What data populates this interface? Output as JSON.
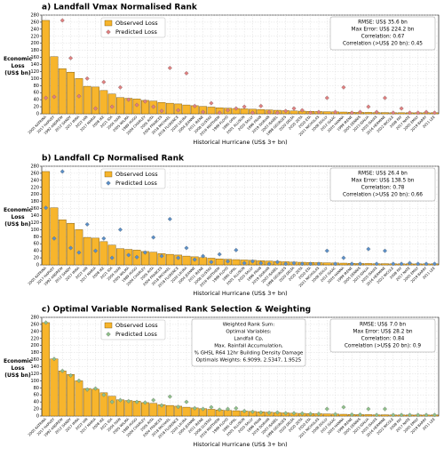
{
  "chart_data": [
    {
      "type": "bar",
      "title": "a) Landfall Vmax Normalised Rank",
      "y_label": [
        "Economic",
        "Loss",
        "(US$ bn)"
      ],
      "x_label": "Historical Hurricane (US$ 3+ bn)",
      "categories": [
        "2005 KATRINA",
        "2017 HARVEY",
        "1992 ANDREW",
        "2012 SANDY",
        "2017 IRMA",
        "2022 IAN",
        "2017 MARIA",
        "2008 IKE",
        "2021 IDA",
        "2004 IVAN",
        "2005 WILMA",
        "1989 HUGO",
        "2004 CHARLEY",
        "2005 RITA",
        "2004 FRANCES",
        "2018 MICHAEL",
        "2018 FLORENCE",
        "2020 LAURA",
        "2004 JEANNE",
        "2011 IRENE",
        "2008 GUSTAV",
        "2016 MATTHEW",
        "1999 FLOYD",
        "1995 OPAL",
        "2001 ALLISON",
        "2020 SALLY",
        "1996 FRAN",
        "2019 DORIAN",
        "2003 ISABEL",
        "1998 GEORGES",
        "2020 DELTA",
        "2020 ZETA",
        "2020 ETA",
        "2021 NICHOLAS",
        "2008 DOLLY",
        "2012 ISAAC",
        "2020 HANNA",
        "1999 IRENE",
        "2005 DENNIS",
        "2023 IDALIA",
        "2020 ISAIAS",
        "2016 HERMINE",
        "2022 NICOLE",
        "2008 FAY",
        "2017 NATE",
        "2005 EMILY",
        "2019 BARRY",
        "2011 LEE"
      ],
      "series": [
        {
          "name": "Observed Loss",
          "color": "#f7b52c",
          "style": "bar",
          "values": [
            265,
            162,
            128,
            118,
            100,
            78,
            76,
            66,
            56,
            46,
            44,
            42,
            38,
            36,
            32,
            30,
            28,
            25,
            23,
            21,
            19,
            17,
            16,
            15,
            14,
            13,
            12,
            11,
            10,
            9,
            8,
            7.5,
            7,
            6.5,
            6,
            5.5,
            5,
            4.5,
            4,
            4,
            3.5,
            3.5,
            3,
            3,
            3,
            3,
            3,
            3
          ]
        },
        {
          "name": "Predicted Loss",
          "color": "#e07f7f",
          "style": "diamond",
          "values": [
            45,
            48,
            265,
            158,
            50,
            100,
            15,
            90,
            20,
            75,
            40,
            25,
            35,
            20,
            8,
            130,
            10,
            115,
            22,
            5,
            30,
            3,
            10,
            15,
            20,
            3,
            22,
            5,
            3,
            8,
            15,
            10,
            3,
            5,
            45,
            5,
            75,
            3,
            5,
            20,
            5,
            45,
            3,
            15,
            3,
            3,
            5,
            3
          ]
        }
      ],
      "ylim": [
        0,
        280
      ],
      "yticks": [
        0,
        20,
        40,
        60,
        80,
        100,
        120,
        140,
        160,
        180,
        200,
        220,
        240,
        260,
        280
      ],
      "grid": true,
      "legend": "upper left",
      "stats": [
        "RMSE: US$ 35.6 bn",
        "Max Error: US$ 224.2 bn",
        "Correlation: 0.67",
        "Correlation (>US$ 20 bn): 0.45"
      ]
    },
    {
      "type": "bar",
      "title": "b) Landfall Cp Normalised Rank",
      "y_label": [
        "Economic",
        "Loss",
        "(US$ bn)"
      ],
      "x_label": "Historical Hurricane (US$ 3+ bn)",
      "categories": [
        "2005 KATRINA",
        "2017 HARVEY",
        "1992 ANDREW",
        "2012 SANDY",
        "2017 IRMA",
        "2022 IAN",
        "2017 MARIA",
        "2008 IKE",
        "2021 IDA",
        "2004 IVAN",
        "2005 WILMA",
        "1989 HUGO",
        "2004 CHARLEY",
        "2005 RITA",
        "2004 FRANCES",
        "2018 MICHAEL",
        "2018 FLORENCE",
        "2020 LAURA",
        "2004 JEANNE",
        "2011 IRENE",
        "2008 GUSTAV",
        "2016 MATTHEW",
        "1999 FLOYD",
        "1995 OPAL",
        "2001 ALLISON",
        "2020 SALLY",
        "1996 FRAN",
        "2019 DORIAN",
        "2003 ISABEL",
        "1998 GEORGES",
        "2020 DELTA",
        "2020 ZETA",
        "2020 ETA",
        "2021 NICHOLAS",
        "2008 DOLLY",
        "2012 ISAAC",
        "2020 HANNA",
        "1999 IRENE",
        "2005 DENNIS",
        "2023 IDALIA",
        "2020 ISAIAS",
        "2016 HERMINE",
        "2022 NICOLE",
        "2008 FAY",
        "2017 NATE",
        "2005 EMILY",
        "2019 BARRY",
        "2011 LEE"
      ],
      "series": [
        {
          "name": "Observed Loss",
          "color": "#f7b52c",
          "style": "bar",
          "values": [
            265,
            162,
            128,
            118,
            100,
            78,
            76,
            66,
            56,
            46,
            44,
            42,
            38,
            36,
            32,
            30,
            28,
            25,
            23,
            21,
            19,
            17,
            16,
            15,
            14,
            13,
            12,
            11,
            10,
            9,
            8,
            7.5,
            7,
            6.5,
            6,
            5.5,
            5,
            4.5,
            4,
            4,
            3.5,
            3.5,
            3,
            3,
            3,
            3,
            3,
            3
          ]
        },
        {
          "name": "Predicted Loss",
          "color": "#5b8fc7",
          "style": "diamond",
          "values": [
            162,
            75,
            265,
            48,
            35,
            115,
            40,
            75,
            20,
            100,
            28,
            22,
            35,
            78,
            25,
            130,
            20,
            48,
            15,
            25,
            8,
            30,
            10,
            42,
            5,
            10,
            5,
            3,
            8,
            3,
            5,
            3,
            3,
            3,
            40,
            3,
            20,
            3,
            3,
            45,
            3,
            40,
            3,
            3,
            5,
            3,
            3,
            3
          ]
        }
      ],
      "ylim": [
        0,
        280
      ],
      "yticks": [
        0,
        20,
        40,
        60,
        80,
        100,
        120,
        140,
        160,
        180,
        200,
        220,
        240,
        260,
        280
      ],
      "grid": true,
      "legend": "upper left",
      "stats": [
        "RMSE: US$ 26.4 bn",
        "Max Error: US$ 138.5 bn",
        "Correlation: 0.78",
        "Correlation (>US$ 20 bn): 0.66"
      ]
    },
    {
      "type": "bar",
      "title": "c) Optimal Variable Normalised Rank Selection & Weighting",
      "y_label": [
        "Economic",
        "Loss",
        "(US$ bn)"
      ],
      "x_label": "Historical Hurricane (US$ 3+ bn)",
      "categories": [
        "2005 KATRINA",
        "2017 HARVEY",
        "1992 ANDREW",
        "2012 SANDY",
        "2017 IRMA",
        "2022 IAN",
        "2017 MARIA",
        "2008 IKE",
        "2021 IDA",
        "2004 IVAN",
        "2005 WILMA",
        "1989 HUGO",
        "2004 CHARLEY",
        "2005 RITA",
        "2004 FRANCES",
        "2018 MICHAEL",
        "2018 FLORENCE",
        "2020 LAURA",
        "2004 JEANNE",
        "2011 IRENE",
        "2008 GUSTAV",
        "2016 MATTHEW",
        "1999 FLOYD",
        "1995 OPAL",
        "2001 ALLISON",
        "2020 SALLY",
        "1996 FRAN",
        "2019 DORIAN",
        "2003 ISABEL",
        "1998 GEORGES",
        "2020 DELTA",
        "2020 ZETA",
        "2020 ETA",
        "2021 NICHOLAS",
        "2008 DOLLY",
        "2012 ISAAC",
        "2020 HANNA",
        "1999 IRENE",
        "2005 DENNIS",
        "2023 IDALIA",
        "2020 ISAIAS",
        "2016 HERMINE",
        "2022 NICOLE",
        "2008 FAY",
        "2017 NATE",
        "2005 EMILY",
        "2019 BARRY",
        "2011 LEE"
      ],
      "series": [
        {
          "name": "Observed Loss",
          "color": "#f7b52c",
          "style": "bar",
          "values": [
            265,
            162,
            128,
            118,
            100,
            78,
            76,
            66,
            56,
            46,
            44,
            42,
            38,
            36,
            32,
            30,
            28,
            25,
            23,
            21,
            19,
            17,
            16,
            15,
            14,
            13,
            12,
            11,
            10,
            9,
            8,
            7.5,
            7,
            6.5,
            6,
            5.5,
            5,
            4.5,
            4,
            4,
            3.5,
            3.5,
            3,
            3,
            3,
            3,
            3,
            3
          ]
        },
        {
          "name": "Predicted Loss",
          "color": "#8fc08a",
          "style": "diamond",
          "values": [
            265,
            162,
            128,
            115,
            100,
            75,
            78,
            60,
            40,
            45,
            42,
            40,
            38,
            45,
            30,
            55,
            26,
            40,
            22,
            20,
            25,
            18,
            20,
            22,
            14,
            12,
            10,
            9,
            10,
            8,
            8,
            7,
            6,
            6,
            20,
            5,
            25,
            4,
            4,
            20,
            3,
            20,
            3,
            3,
            3,
            3,
            3,
            3
          ]
        }
      ],
      "ylim": [
        0,
        280
      ],
      "yticks": [
        0,
        20,
        40,
        60,
        80,
        100,
        120,
        140,
        160,
        180,
        200,
        220,
        240,
        260,
        280
      ],
      "grid": true,
      "legend": "upper left",
      "stats": [
        "RMSE: US$ 7.0 bn",
        "Max Error: US$ 28.2 bn",
        "Correlation: 0.84",
        "Correlation (>US$ 20 bn): 0.9"
      ],
      "weights": [
        "Weighted Rank Sum:",
        "Optimal Variables:",
        "Landfall Cp,",
        "Max. Rainfall Accumulation,",
        "% GHSL R64 12hr Building Density Damage",
        "Optimals Weights: 6.9099, 2.5347, 1.9525"
      ]
    }
  ]
}
